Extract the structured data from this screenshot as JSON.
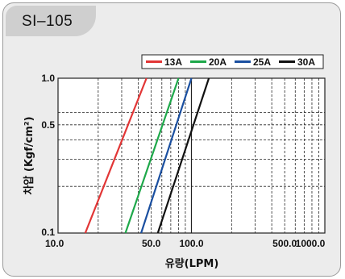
{
  "header": {
    "model_label": "SI–105"
  },
  "chart_data": {
    "type": "line",
    "title": "",
    "xlabel": "유량(LPM)",
    "ylabel": "차압 (Kgf/cm²)",
    "x_scale": "log",
    "y_scale": "log",
    "xlim": [
      10,
      1000
    ],
    "ylim": [
      0.1,
      1.0
    ],
    "x_tick_labels": [
      "10.0",
      "50.0",
      "100.0",
      "500.0",
      "1000.0"
    ],
    "x_ticks": [
      10,
      50,
      100,
      500,
      1000
    ],
    "y_tick_labels": [
      "0.1",
      "0.5",
      "1.0"
    ],
    "y_ticks": [
      0.1,
      0.5,
      1.0
    ],
    "x_minor_grid": [
      20,
      30,
      40,
      60,
      70,
      80,
      90,
      200,
      300,
      400,
      600,
      700,
      800,
      900
    ],
    "y_minor_grid": [
      0.2,
      0.3,
      0.4,
      0.6
    ],
    "grid": true,
    "legend_position": "top-right",
    "series": [
      {
        "name": "13A",
        "color": "#e23636",
        "x": [
          16,
          46
        ],
        "y": [
          0.1,
          1.0
        ]
      },
      {
        "name": "20A",
        "color": "#1ea84a",
        "x": [
          32,
          80
        ],
        "y": [
          0.1,
          1.0
        ]
      },
      {
        "name": "25A",
        "color": "#1a4fa0",
        "x": [
          42,
          100
        ],
        "y": [
          0.1,
          1.0
        ]
      },
      {
        "name": "30A",
        "color": "#111111",
        "x": [
          56,
          135
        ],
        "y": [
          0.1,
          1.0
        ]
      }
    ]
  }
}
